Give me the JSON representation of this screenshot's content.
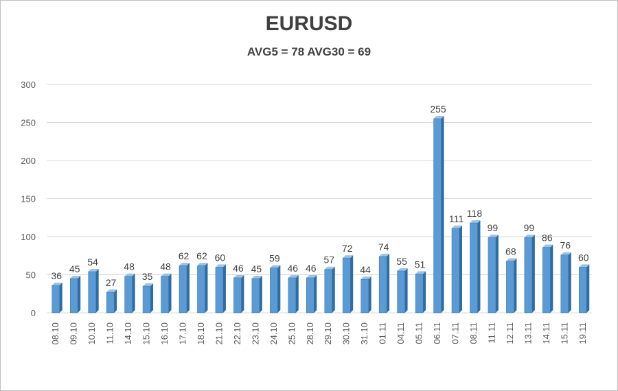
{
  "chart_data": {
    "type": "bar",
    "title": "EURUSD",
    "subtitle": "AVG5 = 78 AVG30 = 69",
    "categories": [
      "08.10",
      "09.10",
      "10.10",
      "11.10",
      "14.10",
      "15.10",
      "16.10",
      "17.10",
      "18.10",
      "21.10",
      "22.10",
      "23.10",
      "24.10",
      "25.10",
      "28.10",
      "29.10",
      "30.10",
      "31.10",
      "01.11",
      "04.11",
      "05.11",
      "06.11",
      "07.11",
      "08.11",
      "11.11",
      "12.11",
      "13.11",
      "14.11",
      "15.11",
      "19.11"
    ],
    "values": [
      36,
      45,
      54,
      27,
      48,
      35,
      48,
      62,
      62,
      60,
      46,
      45,
      59,
      46,
      46,
      57,
      72,
      44,
      74,
      55,
      51,
      255,
      111,
      118,
      99,
      68,
      99,
      86,
      76,
      60
    ],
    "ylim": [
      0,
      300
    ],
    "yticks": [
      0,
      50,
      100,
      150,
      200,
      250,
      300
    ],
    "grid": true,
    "legend": "none",
    "colors": {
      "bar_front": "#5b9bd5",
      "bar_side": "#2e6da4",
      "bar_top": "#9dc3e6",
      "grid": "#d9d9d9"
    }
  }
}
